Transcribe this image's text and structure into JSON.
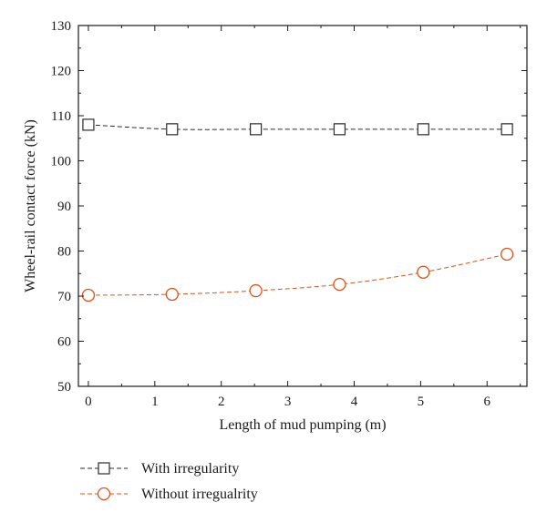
{
  "chart_data": {
    "type": "line",
    "title": "",
    "xlabel": "Length of mud pumping (m)",
    "ylabel": "Wheel-rail contact force (kN)",
    "xlim": [
      -0.15,
      6.6
    ],
    "ylim": [
      50,
      130
    ],
    "xticks": [
      0,
      1,
      2,
      3,
      4,
      5,
      6
    ],
    "yticks": [
      50,
      60,
      70,
      80,
      90,
      100,
      110,
      120,
      130
    ],
    "x": [
      0,
      1.26,
      2.52,
      3.78,
      5.04,
      6.3
    ],
    "grid": false,
    "legend_position": "bottom-left, below plot",
    "series": [
      {
        "name": "With irregularity",
        "marker": "square",
        "line_style": "dashed",
        "color": "#2b2b2b",
        "values": [
          108,
          107,
          107,
          107,
          107,
          107
        ]
      },
      {
        "name": "Without irregualrity",
        "marker": "circle",
        "line_style": "dashed",
        "color": "#d9531e",
        "values": [
          70.2,
          70.4,
          71.2,
          72.6,
          75.3,
          79.3
        ]
      }
    ]
  }
}
